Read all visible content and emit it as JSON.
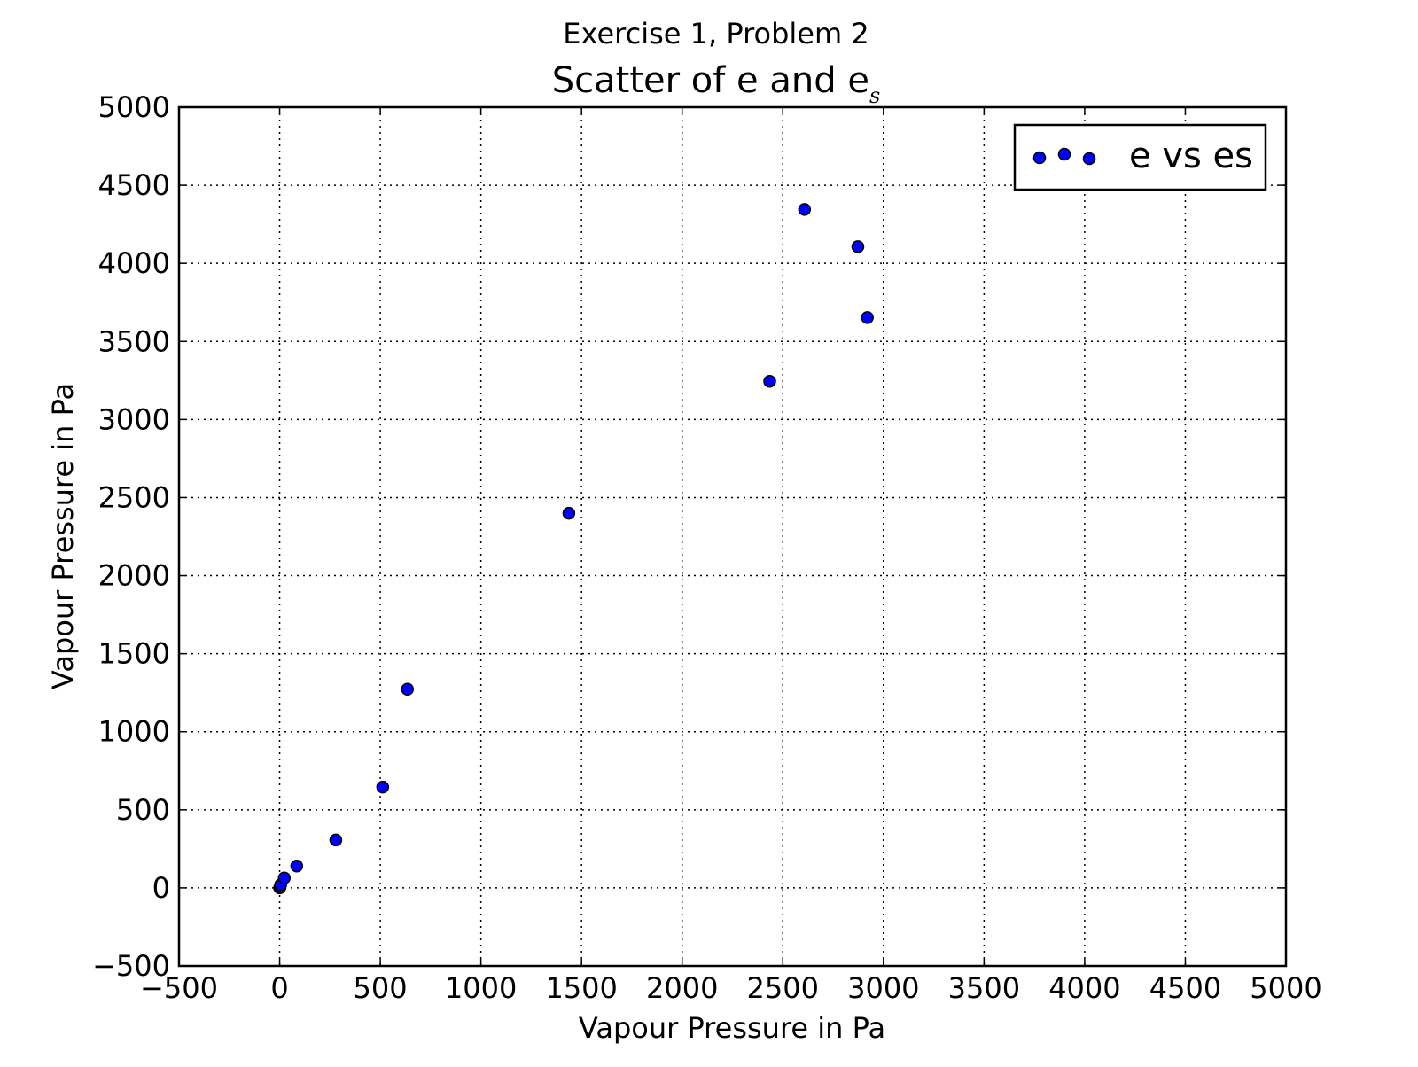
{
  "chart_data": {
    "type": "scatter",
    "suptitle": "Exercise 1, Problem 2",
    "title": "Scatter of e and e",
    "title_subscript": "s",
    "xlabel": "Vapour Pressure in Pa",
    "ylabel": "Vapour Pressure in Pa",
    "xlim": [
      -500,
      5000
    ],
    "ylim": [
      -500,
      5000
    ],
    "xticks": [
      -500,
      0,
      500,
      1000,
      1500,
      2000,
      2500,
      3000,
      3500,
      4000,
      4500,
      5000
    ],
    "yticks": [
      -500,
      0,
      500,
      1000,
      1500,
      2000,
      2500,
      3000,
      3500,
      4000,
      4500,
      5000
    ],
    "grid": true,
    "legend_position": "top-right",
    "marker_color": "#0000ff",
    "marker_edge_color": "#000000",
    "series": [
      {
        "name": "e vs es",
        "points": [
          {
            "x": 0,
            "y": 0
          },
          {
            "x": 2,
            "y": 5
          },
          {
            "x": 5,
            "y": 20
          },
          {
            "x": 23,
            "y": 63
          },
          {
            "x": 85,
            "y": 140
          },
          {
            "x": 279,
            "y": 307
          },
          {
            "x": 512,
            "y": 646
          },
          {
            "x": 635,
            "y": 1272
          },
          {
            "x": 1437,
            "y": 2400
          },
          {
            "x": 2435,
            "y": 3245
          },
          {
            "x": 2608,
            "y": 4345
          },
          {
            "x": 2873,
            "y": 4107
          },
          {
            "x": 2920,
            "y": 3653
          }
        ]
      }
    ]
  }
}
